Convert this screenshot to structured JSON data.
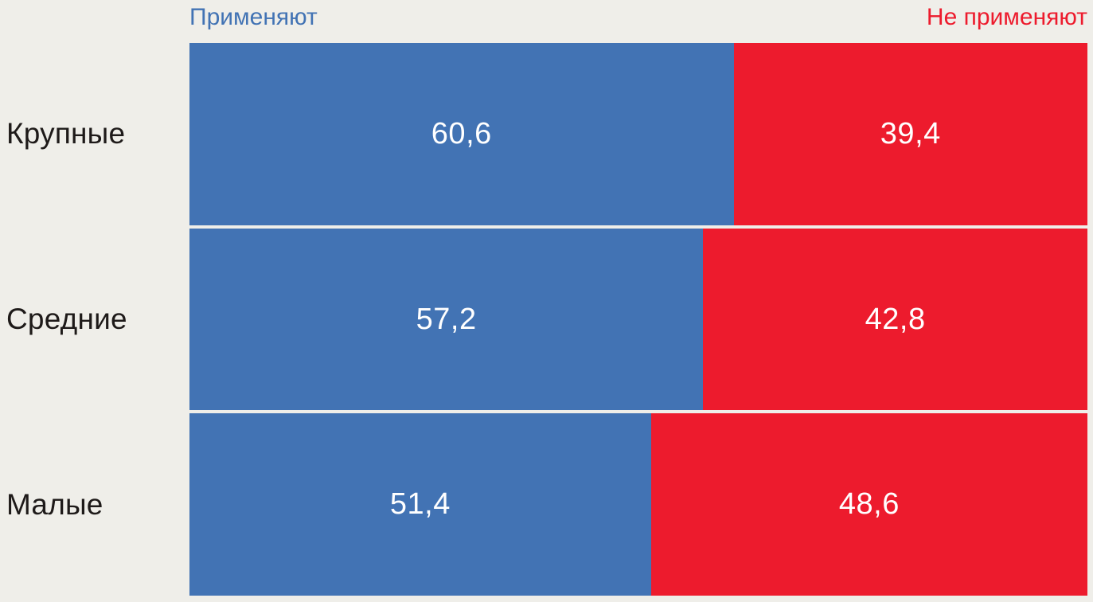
{
  "chart_data": {
    "type": "bar",
    "orientation": "horizontal",
    "stacked": true,
    "unit": "percent",
    "title": "",
    "xlabel": "",
    "ylabel": "",
    "xlim": [
      0,
      100
    ],
    "grid": false,
    "legend_position": "top",
    "categories": [
      "Крупные",
      "Средние",
      "Малые"
    ],
    "series": [
      {
        "name": "Применяют",
        "color": "#4273b4",
        "values": [
          60.6,
          57.2,
          51.4
        ]
      },
      {
        "name": "Не применяют",
        "color": "#ed1b2d",
        "values": [
          39.4,
          42.8,
          48.6
        ]
      }
    ],
    "value_labels": [
      [
        "60,6",
        "39,4"
      ],
      [
        "57,2",
        "42,8"
      ],
      [
        "51,4",
        "48,6"
      ]
    ]
  },
  "legend": {
    "left_label": "Применяют",
    "right_label": "Не применяют"
  },
  "colors": {
    "background": "#efeee9",
    "applying": "#4273b4",
    "not_applying": "#ed1b2d",
    "category_text": "#1e1a19",
    "value_text": "#ffffff"
  }
}
